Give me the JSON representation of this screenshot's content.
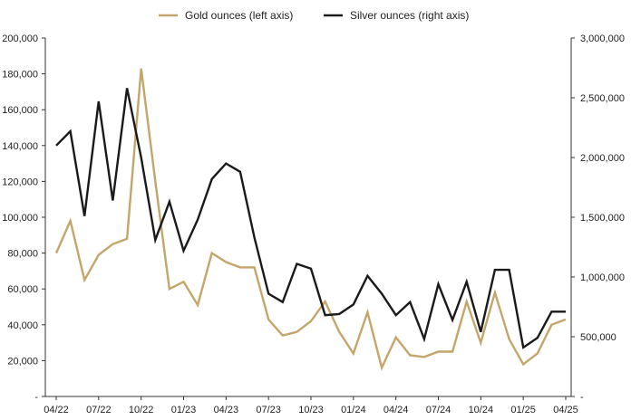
{
  "chart_data": {
    "type": "line",
    "x_labels": [
      "04/22",
      "07/22",
      "10/22",
      "01/23",
      "04/23",
      "07/23",
      "10/23",
      "01/24",
      "04/24",
      "07/24",
      "10/24",
      "01/25",
      "04/25"
    ],
    "left_axis": {
      "ticks": [
        "-",
        "20,000",
        "40,000",
        "60,000",
        "80,000",
        "100,000",
        "120,000",
        "140,000",
        "160,000",
        "180,000",
        "200,000"
      ],
      "ylim": [
        0,
        200000
      ]
    },
    "right_axis": {
      "ticks": [
        "-",
        "500,000",
        "1,000,000",
        "1,500,000",
        "2,000,000",
        "2,500,000",
        "3,000,000"
      ],
      "ylim": [
        0,
        3000000
      ]
    },
    "legend": {
      "placement": "top-center"
    },
    "series": [
      {
        "name": "Gold ounces (left axis)",
        "axis": "left",
        "color": "#c4a56a",
        "values": [
          80000,
          98000,
          65000,
          79000,
          85000,
          88000,
          183000,
          120000,
          60000,
          64000,
          51000,
          80000,
          75000,
          72000,
          72000,
          43000,
          34000,
          36000,
          42000,
          53000,
          36000,
          24000,
          47000,
          16000,
          33000,
          23000,
          22000,
          25000,
          25000,
          53000,
          30000,
          58000,
          32000,
          18000,
          24000,
          40000,
          43000
        ]
      },
      {
        "name": "Silver ounces (right axis)",
        "axis": "right",
        "color": "#1a1a1a",
        "values": [
          2100000,
          2220000,
          1510000,
          2470000,
          1640000,
          2580000,
          2000000,
          1310000,
          1630000,
          1220000,
          1480000,
          1820000,
          1950000,
          1880000,
          1330000,
          860000,
          790000,
          1110000,
          1070000,
          680000,
          690000,
          770000,
          1010000,
          860000,
          680000,
          790000,
          480000,
          940000,
          640000,
          960000,
          540000,
          1060000,
          1060000,
          410000,
          490000,
          710000,
          710000
        ]
      }
    ]
  }
}
